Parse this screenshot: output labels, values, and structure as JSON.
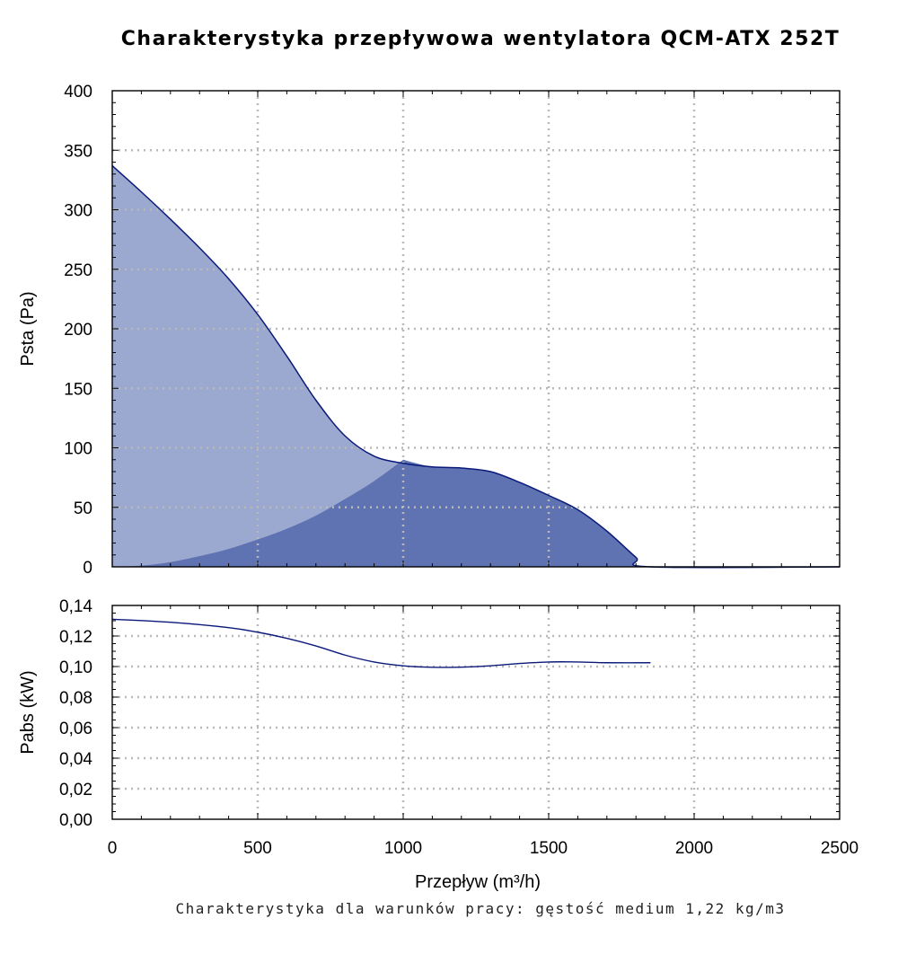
{
  "title": "Charakterystyka przepływowa wentylatora QCM-ATX 252T",
  "footnote": "Charakterystyka dla warunków pracy: gęstość medium 1,22 kg/m3",
  "colors": {
    "pressure_fill_light": "#9ba8cf",
    "pressure_fill_dark": "#5f73b2",
    "curve": "#0a1a7a",
    "grid": "#b9b9b9"
  },
  "chart_data": [
    {
      "type": "area",
      "ylabel": "Psta (Pa)",
      "xlim": [
        0,
        2500
      ],
      "ylim": [
        0,
        400
      ],
      "x_ticks": [
        0,
        500,
        1000,
        1500,
        2000,
        2500
      ],
      "y_ticks": [
        "0",
        "50",
        "100",
        "150",
        "200",
        "250",
        "300",
        "350",
        "400"
      ],
      "y_tick_values": [
        0,
        50,
        100,
        150,
        200,
        250,
        300,
        350,
        400
      ],
      "grid": true,
      "series": [
        {
          "x": [
            0,
            100,
            200,
            300,
            400,
            500,
            600,
            700,
            800,
            900,
            1000,
            1100,
            1200,
            1300,
            1400,
            1500,
            1600,
            1700,
            1800,
            1850,
            2500
          ],
          "y": [
            337,
            315,
            292,
            268,
            242,
            212,
            177,
            140,
            110,
            93,
            87,
            84,
            83,
            80,
            71,
            60,
            48,
            30,
            8,
            0,
            0
          ]
        },
        {
          "x": [
            0,
            100,
            200,
            300,
            400,
            500,
            600,
            700,
            800,
            900,
            1000
          ],
          "y": [
            0,
            1,
            4,
            9,
            15,
            23,
            32,
            43,
            57,
            72,
            90
          ]
        }
      ]
    },
    {
      "type": "line",
      "xlabel": "Przepływ (m³/h)",
      "ylabel": "Pabs (kW)",
      "xlim": [
        0,
        2500
      ],
      "ylim": [
        0,
        0.14
      ],
      "x_ticks": [
        "0",
        "500",
        "1000",
        "1500",
        "2000",
        "2500"
      ],
      "x_tick_values": [
        0,
        500,
        1000,
        1500,
        2000,
        2500
      ],
      "y_ticks": [
        "0,00",
        "0,02",
        "0,04",
        "0,06",
        "0,08",
        "0,10",
        "0,12",
        "0,14"
      ],
      "y_tick_values": [
        0,
        0.02,
        0.04,
        0.06,
        0.08,
        0.1,
        0.12,
        0.14
      ],
      "grid": true,
      "series": [
        {
          "x": [
            0,
            200,
            400,
            500,
            600,
            700,
            800,
            900,
            1000,
            1100,
            1200,
            1300,
            1400,
            1500,
            1600,
            1700,
            1850
          ],
          "y": [
            0.131,
            0.129,
            0.1255,
            0.1225,
            0.1185,
            0.1135,
            0.1075,
            0.103,
            0.1005,
            0.0995,
            0.0996,
            0.1005,
            0.102,
            0.103,
            0.103,
            0.1025,
            0.1025
          ]
        }
      ]
    }
  ]
}
